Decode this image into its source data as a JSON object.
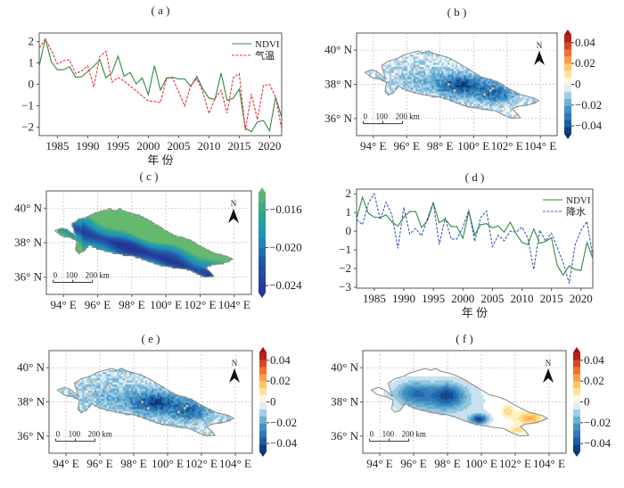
{
  "chart_data": [
    {
      "id": "a",
      "type": "line",
      "panel_label": "( a )",
      "xlabel": "年 份",
      "ylabel": "",
      "xlim": [
        1982,
        2022
      ],
      "ylim": [
        -2.4,
        2.4
      ],
      "xticks": [
        1985,
        1990,
        1995,
        2000,
        2005,
        2010,
        2015,
        2020
      ],
      "yticks": [
        2,
        1,
        0,
        -1,
        -2
      ],
      "grid": false,
      "legend_position": "top-right",
      "x": [
        1982,
        1983,
        1984,
        1985,
        1986,
        1987,
        1988,
        1989,
        1990,
        1991,
        1992,
        1993,
        1994,
        1995,
        1996,
        1997,
        1998,
        1999,
        2000,
        2001,
        2002,
        2003,
        2004,
        2005,
        2006,
        2007,
        2008,
        2009,
        2010,
        2011,
        2012,
        2013,
        2014,
        2015,
        2016,
        2017,
        2018,
        2019,
        2020,
        2021,
        2022
      ],
      "series": [
        {
          "name": "NDVI",
          "color": "#2e8b3e",
          "dash": "solid",
          "values": [
            0.85,
            2.15,
            1.05,
            0.68,
            0.68,
            0.82,
            0.33,
            0.35,
            0.6,
            0.85,
            1.15,
            0.3,
            0.55,
            1.32,
            0.38,
            0.55,
            0.02,
            0.3,
            -0.48,
            0.87,
            -0.27,
            0.3,
            0.32,
            0.25,
            0.25,
            -0.1,
            0.37,
            -0.22,
            -0.65,
            -0.7,
            0.52,
            -0.75,
            -0.65,
            -0.22,
            -2.05,
            -2.22,
            -1.75,
            -1.7,
            -2.18,
            -0.6,
            -1.55
          ]
        },
        {
          "name": "气温",
          "color": "#e8323c",
          "dash": "dashed",
          "values": [
            1.7,
            2.1,
            1.6,
            0.95,
            1.1,
            1.15,
            0.5,
            0.62,
            0.87,
            -0.12,
            1.3,
            1.55,
            0.1,
            0.32,
            0.15,
            -0.08,
            -0.3,
            -0.55,
            -0.78,
            -0.8,
            -0.85,
            0.28,
            0.3,
            -0.35,
            -1.02,
            -0.05,
            0.25,
            -0.35,
            -1.37,
            -0.65,
            -0.28,
            -1.35,
            0.3,
            0.5,
            -2.15,
            -0.45,
            -1.65,
            -0.05,
            0.0,
            -0.6,
            -2.1
          ]
        }
      ]
    },
    {
      "id": "b",
      "type": "heatmap",
      "panel_label": "( b )",
      "xticks": [
        "94° E",
        "96° E",
        "98° E",
        "100° E",
        "102° E",
        "104° E"
      ],
      "yticks": [
        "40° N",
        "38° N",
        "36° N"
      ],
      "colorbar": {
        "ticks": [
          "0.04",
          "0.02",
          "0",
          "−0.02",
          "−0.04"
        ],
        "range": [
          -0.048,
          0.048
        ],
        "scheme": "diverging-RdBu"
      },
      "north_label": "N",
      "scale_bar": [
        "0",
        "100",
        "200 km"
      ],
      "description": "Mostly negative (blue) values concentrated in central-east basin; darkest around 98–101° E, 37.5–38.5° N"
    },
    {
      "id": "c",
      "type": "heatmap",
      "panel_label": "( c )",
      "xticks": [
        "94° E",
        "96° E",
        "98° E",
        "100° E",
        "102° E",
        "104° E"
      ],
      "yticks": [
        "40° N",
        "38° N",
        "36° N"
      ],
      "colorbar": {
        "ticks": [
          "−0.016",
          "−0.020",
          "−0.024"
        ],
        "range": [
          -0.0245,
          -0.0135
        ],
        "scheme": "sequential-blue-green"
      },
      "north_label": "N",
      "scale_bar": [
        "0",
        "100",
        "200 km"
      ],
      "description": "Smoothed field, lowest (dark blue) along central axis 95–101° E, higher (green) at margins"
    },
    {
      "id": "d",
      "type": "line",
      "panel_label": "( d )",
      "xlabel": "年 份",
      "ylabel": "",
      "xlim": [
        1982,
        2022
      ],
      "ylim": [
        -3.05,
        2.25
      ],
      "xticks": [
        1985,
        1990,
        1995,
        2000,
        2005,
        2010,
        2015,
        2020
      ],
      "yticks": [
        2,
        1,
        0,
        -1,
        -2,
        -3
      ],
      "grid": false,
      "legend_position": "top-right",
      "x": [
        1982,
        1983,
        1984,
        1985,
        1986,
        1987,
        1988,
        1989,
        1990,
        1991,
        1992,
        1993,
        1994,
        1995,
        1996,
        1997,
        1998,
        1999,
        2000,
        2001,
        2002,
        2003,
        2004,
        2005,
        2006,
        2007,
        2008,
        2009,
        2010,
        2011,
        2012,
        2013,
        2014,
        2015,
        2016,
        2017,
        2018,
        2019,
        2020,
        2021,
        2022
      ],
      "series": [
        {
          "name": "NDVI",
          "color": "#2e8b3e",
          "dash": "solid",
          "values": [
            0.65,
            1.82,
            0.95,
            0.75,
            0.72,
            0.88,
            0.48,
            0.28,
            0.75,
            1.05,
            1.05,
            0.2,
            0.55,
            1.52,
            0.45,
            0.65,
            0.25,
            0.25,
            -0.38,
            1.05,
            -0.2,
            0.35,
            0.4,
            0.18,
            0.28,
            -0.05,
            0.48,
            -0.12,
            -0.6,
            -0.72,
            0.12,
            -0.65,
            -0.55,
            -0.35,
            -1.85,
            -2.35,
            -1.85,
            -2.05,
            -2.1,
            -0.6,
            -1.45
          ]
        },
        {
          "name": "降水",
          "color": "#3a5fb0",
          "dash": "dashed",
          "values": [
            0.62,
            0.35,
            1.5,
            2.0,
            0.62,
            1.55,
            0.85,
            -0.92,
            1.28,
            -0.15,
            0.15,
            -0.25,
            0.68,
            1.55,
            -0.72,
            0.72,
            -0.42,
            -0.42,
            0.22,
            1.12,
            -0.55,
            0.72,
            1.08,
            -0.82,
            -0.22,
            -0.52,
            0.0,
            -0.05,
            0.22,
            -0.35,
            -2.05,
            0.05,
            -0.52,
            -0.1,
            -0.9,
            -1.7,
            -2.8,
            -0.75,
            0.05,
            0.52,
            -1.35
          ]
        }
      ]
    },
    {
      "id": "e",
      "type": "heatmap",
      "panel_label": "( e )",
      "xticks": [
        "94° E",
        "96° E",
        "98° E",
        "100° E",
        "102° E",
        "104° E"
      ],
      "yticks": [
        "40° N",
        "38° N",
        "36° N"
      ],
      "colorbar": {
        "ticks": [
          "0.04",
          "0.02",
          "0",
          "−0.02",
          "−0.04"
        ],
        "range": [
          -0.048,
          0.048
        ],
        "scheme": "diverging-RdBu"
      },
      "north_label": "N",
      "scale_bar": [
        "0",
        "100",
        "200 km"
      ],
      "description": "Patchy negative (blue) values, strongest around 97.5–100° E, 37.5–38.5° N"
    },
    {
      "id": "f",
      "type": "heatmap",
      "panel_label": "( f )",
      "xticks": [
        "94° E",
        "96° E",
        "98° E",
        "100° E",
        "102° E",
        "104° E"
      ],
      "yticks": [
        "40° N",
        "38° N",
        "36° N"
      ],
      "colorbar": {
        "ticks": [
          "0.04",
          "0.02",
          "0",
          "−0.02",
          "−0.04"
        ],
        "range": [
          -0.048,
          0.048
        ],
        "scheme": "diverging-RdBu"
      },
      "north_label": "N",
      "scale_bar": [
        "0",
        "100",
        "200 km"
      ],
      "description": "Smoothed negative field in west/central (dark near 96° E 38.5° N and 99.8° E 37° N), positive (yellow-orange) patches in east 101.5–103.5° E"
    }
  ]
}
